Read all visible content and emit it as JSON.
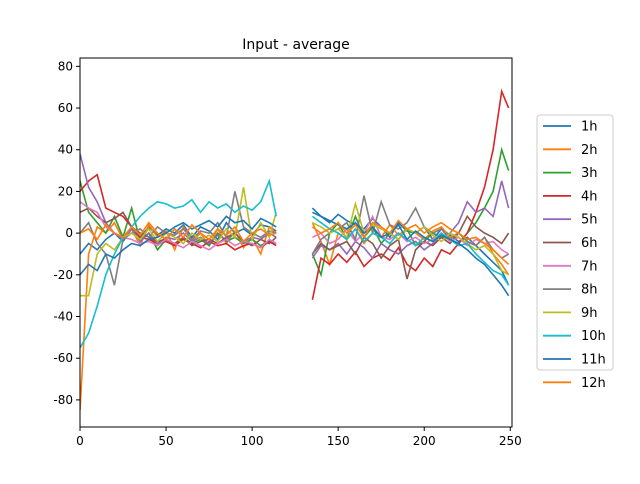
{
  "chart_data": {
    "type": "line",
    "title": "Input - average",
    "xlabel": "",
    "ylabel": "",
    "xlim": [
      0,
      251
    ],
    "ylim": [
      -93,
      84
    ],
    "xticks": [
      0,
      50,
      100,
      150,
      200,
      250
    ],
    "yticks": [
      -80,
      -60,
      -40,
      -20,
      0,
      20,
      40,
      60,
      80
    ],
    "grid": false,
    "legend_placement": "right",
    "x": [
      0,
      5,
      10,
      15,
      20,
      25,
      30,
      35,
      40,
      45,
      50,
      55,
      60,
      65,
      70,
      75,
      80,
      85,
      90,
      95,
      100,
      105,
      110,
      114,
      135,
      140,
      145,
      150,
      155,
      160,
      165,
      170,
      175,
      180,
      185,
      190,
      195,
      200,
      205,
      210,
      215,
      220,
      225,
      230,
      235,
      240,
      245,
      249
    ],
    "series": [
      {
        "name": "1h",
        "color": "#1f77b4",
        "values": [
          -10,
          -5,
          -8,
          -3,
          0,
          -4,
          2,
          -2,
          3,
          -1,
          2,
          0,
          4,
          -2,
          3,
          1,
          -3,
          5,
          0,
          2,
          -1,
          4,
          3,
          1,
          12,
          8,
          5,
          9,
          6,
          4,
          2,
          7,
          3,
          -2,
          5,
          1,
          0,
          3,
          -3,
          2,
          -1,
          -4,
          -2,
          -6,
          -10,
          -14,
          -18,
          -25
        ]
      },
      {
        "name": "2h",
        "color": "#ff7f0e",
        "values": [
          -85,
          -10,
          3,
          0,
          5,
          -3,
          2,
          -6,
          4,
          -2,
          1,
          -8,
          3,
          -4,
          0,
          -6,
          2,
          -5,
          1,
          -7,
          -2,
          -10,
          3,
          0,
          5,
          -4,
          -15,
          0,
          -3,
          2,
          -5,
          0,
          -2,
          4,
          -1,
          2,
          0,
          -3,
          1,
          3,
          -2,
          0,
          -4,
          -6,
          -2,
          -10,
          -15,
          -20
        ]
      },
      {
        "name": "3h",
        "color": "#2ca02c",
        "values": [
          25,
          10,
          5,
          0,
          8,
          -2,
          12,
          -4,
          0,
          -8,
          -3,
          -6,
          -2,
          -5,
          -3,
          -6,
          0,
          -4,
          -2,
          -5,
          -3,
          -6,
          -4,
          -5,
          -10,
          -20,
          0,
          5,
          -3,
          8,
          -2,
          3,
          -5,
          0,
          -3,
          2,
          -6,
          -4,
          0,
          -2,
          -3,
          -5,
          0,
          5,
          12,
          20,
          40,
          30
        ]
      },
      {
        "name": "4h",
        "color": "#d62728",
        "values": [
          20,
          25,
          28,
          12,
          10,
          8,
          3,
          -2,
          -3,
          -5,
          -4,
          -6,
          -3,
          -5,
          -7,
          -4,
          -6,
          -5,
          -8,
          -6,
          -5,
          -7,
          -4,
          -6,
          -32,
          -12,
          -15,
          -10,
          -14,
          -9,
          -16,
          -12,
          -10,
          -13,
          -7,
          -15,
          -18,
          -12,
          -16,
          -8,
          -10,
          -5,
          0,
          10,
          22,
          40,
          68,
          60
        ]
      },
      {
        "name": "5h",
        "color": "#9467bd",
        "values": [
          38,
          22,
          15,
          5,
          0,
          -3,
          2,
          -4,
          0,
          -5,
          -2,
          -3,
          0,
          -4,
          -2,
          -5,
          -1,
          -3,
          0,
          -4,
          -2,
          -3,
          0,
          -2,
          -12,
          -6,
          -8,
          -5,
          -10,
          -4,
          -7,
          -12,
          -5,
          -8,
          -10,
          -6,
          -4,
          -8,
          -5,
          -2,
          0,
          5,
          15,
          10,
          12,
          8,
          25,
          12
        ]
      },
      {
        "name": "6h",
        "color": "#8c564b",
        "values": [
          10,
          12,
          8,
          5,
          7,
          10,
          3,
          0,
          -2,
          -4,
          -3,
          -5,
          -2,
          -6,
          -4,
          -3,
          -5,
          -2,
          0,
          -4,
          -6,
          -3,
          -5,
          -2,
          -10,
          -5,
          -8,
          -6,
          -4,
          -10,
          -2,
          -5,
          -12,
          -6,
          -3,
          -22,
          -8,
          -4,
          -6,
          -2,
          -5,
          0,
          8,
          3,
          0,
          -2,
          -5,
          0
        ]
      },
      {
        "name": "7h",
        "color": "#e377c2",
        "values": [
          15,
          12,
          10,
          3,
          0,
          -2,
          -3,
          -5,
          -4,
          -6,
          -3,
          -5,
          -7,
          -4,
          -6,
          -8,
          -5,
          -3,
          -6,
          -4,
          -5,
          -7,
          -3,
          -5,
          -2,
          0,
          -5,
          -3,
          2,
          -4,
          0,
          8,
          -2,
          -3,
          0,
          -4,
          -2,
          -5,
          -3,
          0,
          -4,
          -2,
          -6,
          -3,
          -5,
          -4,
          -8,
          -10
        ]
      },
      {
        "name": "8h",
        "color": "#7f7f7f",
        "values": [
          0,
          5,
          -5,
          -10,
          -25,
          -3,
          0,
          2,
          -2,
          3,
          0,
          -1,
          2,
          -3,
          1,
          0,
          5,
          -2,
          20,
          3,
          0,
          -2,
          1,
          0,
          -10,
          -3,
          0,
          2,
          5,
          -3,
          18,
          0,
          15,
          4,
          2,
          5,
          12,
          3,
          0,
          2,
          -3,
          0,
          -4,
          -6,
          -2,
          -8,
          -12,
          -10
        ]
      },
      {
        "name": "9h",
        "color": "#bcbd22",
        "values": [
          -30,
          -30,
          -10,
          -5,
          -8,
          -2,
          0,
          -3,
          2,
          -4,
          0,
          -2,
          -5,
          0,
          -3,
          -1,
          -4,
          2,
          -2,
          22,
          -3,
          5,
          -2,
          10,
          5,
          3,
          0,
          2,
          -2,
          14,
          0,
          4,
          2,
          0,
          -3,
          2,
          0,
          3,
          -1,
          -4,
          0,
          -2,
          -5,
          -8,
          -6,
          -10,
          -18,
          -20
        ]
      },
      {
        "name": "10h",
        "color": "#17becf",
        "values": [
          -55,
          -48,
          -35,
          -20,
          -10,
          -2,
          3,
          8,
          12,
          15,
          14,
          12,
          13,
          16,
          10,
          15,
          12,
          14,
          10,
          13,
          11,
          15,
          25,
          8,
          8,
          5,
          2,
          0,
          -3,
          2,
          -4,
          0,
          -2,
          -5,
          0,
          -3,
          -6,
          -2,
          -4,
          0,
          -3,
          -6,
          -5,
          -10,
          -14,
          -18,
          -20,
          -25
        ]
      },
      {
        "name": "11h",
        "color": "#1f77b4",
        "values": [
          -20,
          -15,
          -18,
          -10,
          -12,
          -8,
          -5,
          -6,
          -3,
          -2,
          0,
          3,
          5,
          2,
          4,
          6,
          3,
          8,
          5,
          6,
          2,
          7,
          5,
          3,
          10,
          8,
          6,
          4,
          2,
          5,
          0,
          3,
          -2,
          0,
          4,
          -3,
          1,
          -2,
          -4,
          -1,
          -3,
          -5,
          -8,
          -12,
          -15,
          -20,
          -25,
          -30
        ]
      },
      {
        "name": "12h",
        "color": "#ff7f0e",
        "values": [
          0,
          2,
          -3,
          4,
          0,
          -2,
          3,
          -1,
          5,
          0,
          -3,
          2,
          -2,
          4,
          0,
          -3,
          2,
          -1,
          3,
          -4,
          0,
          2,
          -1,
          0,
          3,
          0,
          2,
          5,
          0,
          4,
          -2,
          5,
          3,
          0,
          6,
          2,
          4,
          0,
          3,
          5,
          2,
          0,
          -3,
          -2,
          -5,
          -8,
          -12,
          -15
        ]
      }
    ]
  }
}
